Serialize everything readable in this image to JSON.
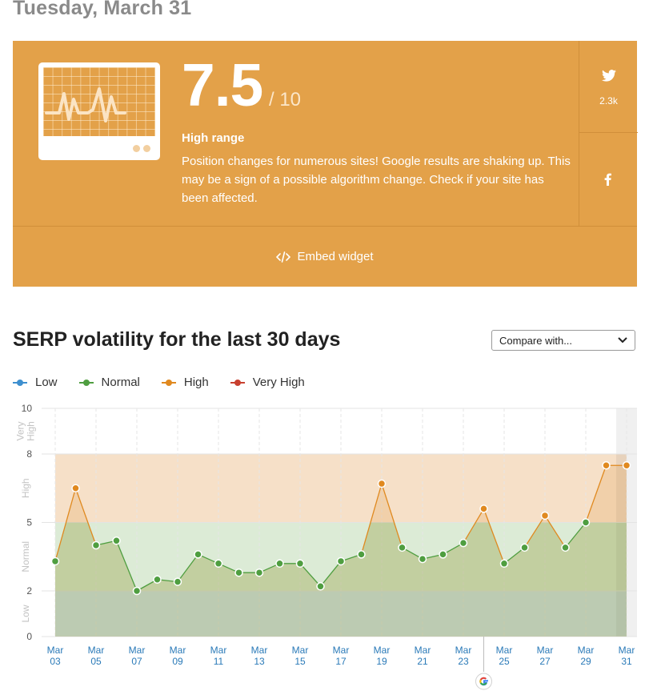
{
  "header": {
    "date": "Tuesday, March 31"
  },
  "score_card": {
    "score": "7.5",
    "max": "/ 10",
    "range_label": "High range",
    "description": "Position changes for numerous sites! Google results are shaking up. This may be a sign of a possible algorithm change. Check if your site has been affected.",
    "twitter_count": "2.3k",
    "embed_label": "Embed widget",
    "bg_color": "#e3a149"
  },
  "section": {
    "title": "SERP volatility for the last 30 days",
    "compare_placeholder": "Compare with..."
  },
  "legend": [
    {
      "label": "Low",
      "color": "#3d8fcf"
    },
    {
      "label": "Normal",
      "color": "#4f9e40"
    },
    {
      "label": "High",
      "color": "#e0891f"
    },
    {
      "label": "Very High",
      "color": "#c8402f"
    }
  ],
  "chart_data": {
    "type": "line",
    "ylim": [
      0,
      10
    ],
    "yticks": [
      0,
      2,
      5,
      8,
      10
    ],
    "bands": [
      {
        "label": "Low",
        "from": 0,
        "to": 2,
        "color": "#d4e6f1"
      },
      {
        "label": "Normal",
        "from": 2,
        "to": 5,
        "color": "#dcebd6"
      },
      {
        "label": "High",
        "from": 5,
        "to": 8,
        "color": "#f6e0c8"
      },
      {
        "label": "Very High",
        "from": 8,
        "to": 10,
        "color": "#ffffff"
      }
    ],
    "x_labels": [
      [
        "Mar",
        "03"
      ],
      [
        "Mar",
        "05"
      ],
      [
        "Mar",
        "07"
      ],
      [
        "Mar",
        "09"
      ],
      [
        "Mar",
        "11"
      ],
      [
        "Mar",
        "13"
      ],
      [
        "Mar",
        "15"
      ],
      [
        "Mar",
        "17"
      ],
      [
        "Mar",
        "19"
      ],
      [
        "Mar",
        "21"
      ],
      [
        "Mar",
        "23"
      ],
      [
        "Mar",
        "25"
      ],
      [
        "Mar",
        "27"
      ],
      [
        "Mar",
        "29"
      ],
      [
        "Mar",
        "31"
      ]
    ],
    "x": [
      "Mar 03",
      "Mar 04",
      "Mar 05",
      "Mar 06",
      "Mar 07",
      "Mar 08",
      "Mar 09",
      "Mar 10",
      "Mar 11",
      "Mar 12",
      "Mar 13",
      "Mar 14",
      "Mar 15",
      "Mar 16",
      "Mar 17",
      "Mar 18",
      "Mar 19",
      "Mar 20",
      "Mar 21",
      "Mar 22",
      "Mar 23",
      "Mar 24",
      "Mar 25",
      "Mar 26",
      "Mar 27",
      "Mar 28",
      "Mar 29",
      "Mar 30",
      "Mar 31"
    ],
    "values": [
      3.3,
      6.5,
      4.0,
      4.2,
      2.0,
      2.5,
      2.4,
      3.6,
      3.2,
      2.8,
      2.8,
      3.2,
      3.2,
      2.2,
      3.3,
      3.6,
      6.7,
      3.9,
      3.4,
      3.6,
      4.1,
      5.6,
      3.2,
      3.9,
      5.3,
      3.9,
      5.0,
      7.5,
      7.5
    ],
    "series_colors": {
      "normal": "#4f9e40",
      "high": "#e0891f"
    },
    "annotation": {
      "x": "Mar 24",
      "icon": "google-icon"
    }
  }
}
